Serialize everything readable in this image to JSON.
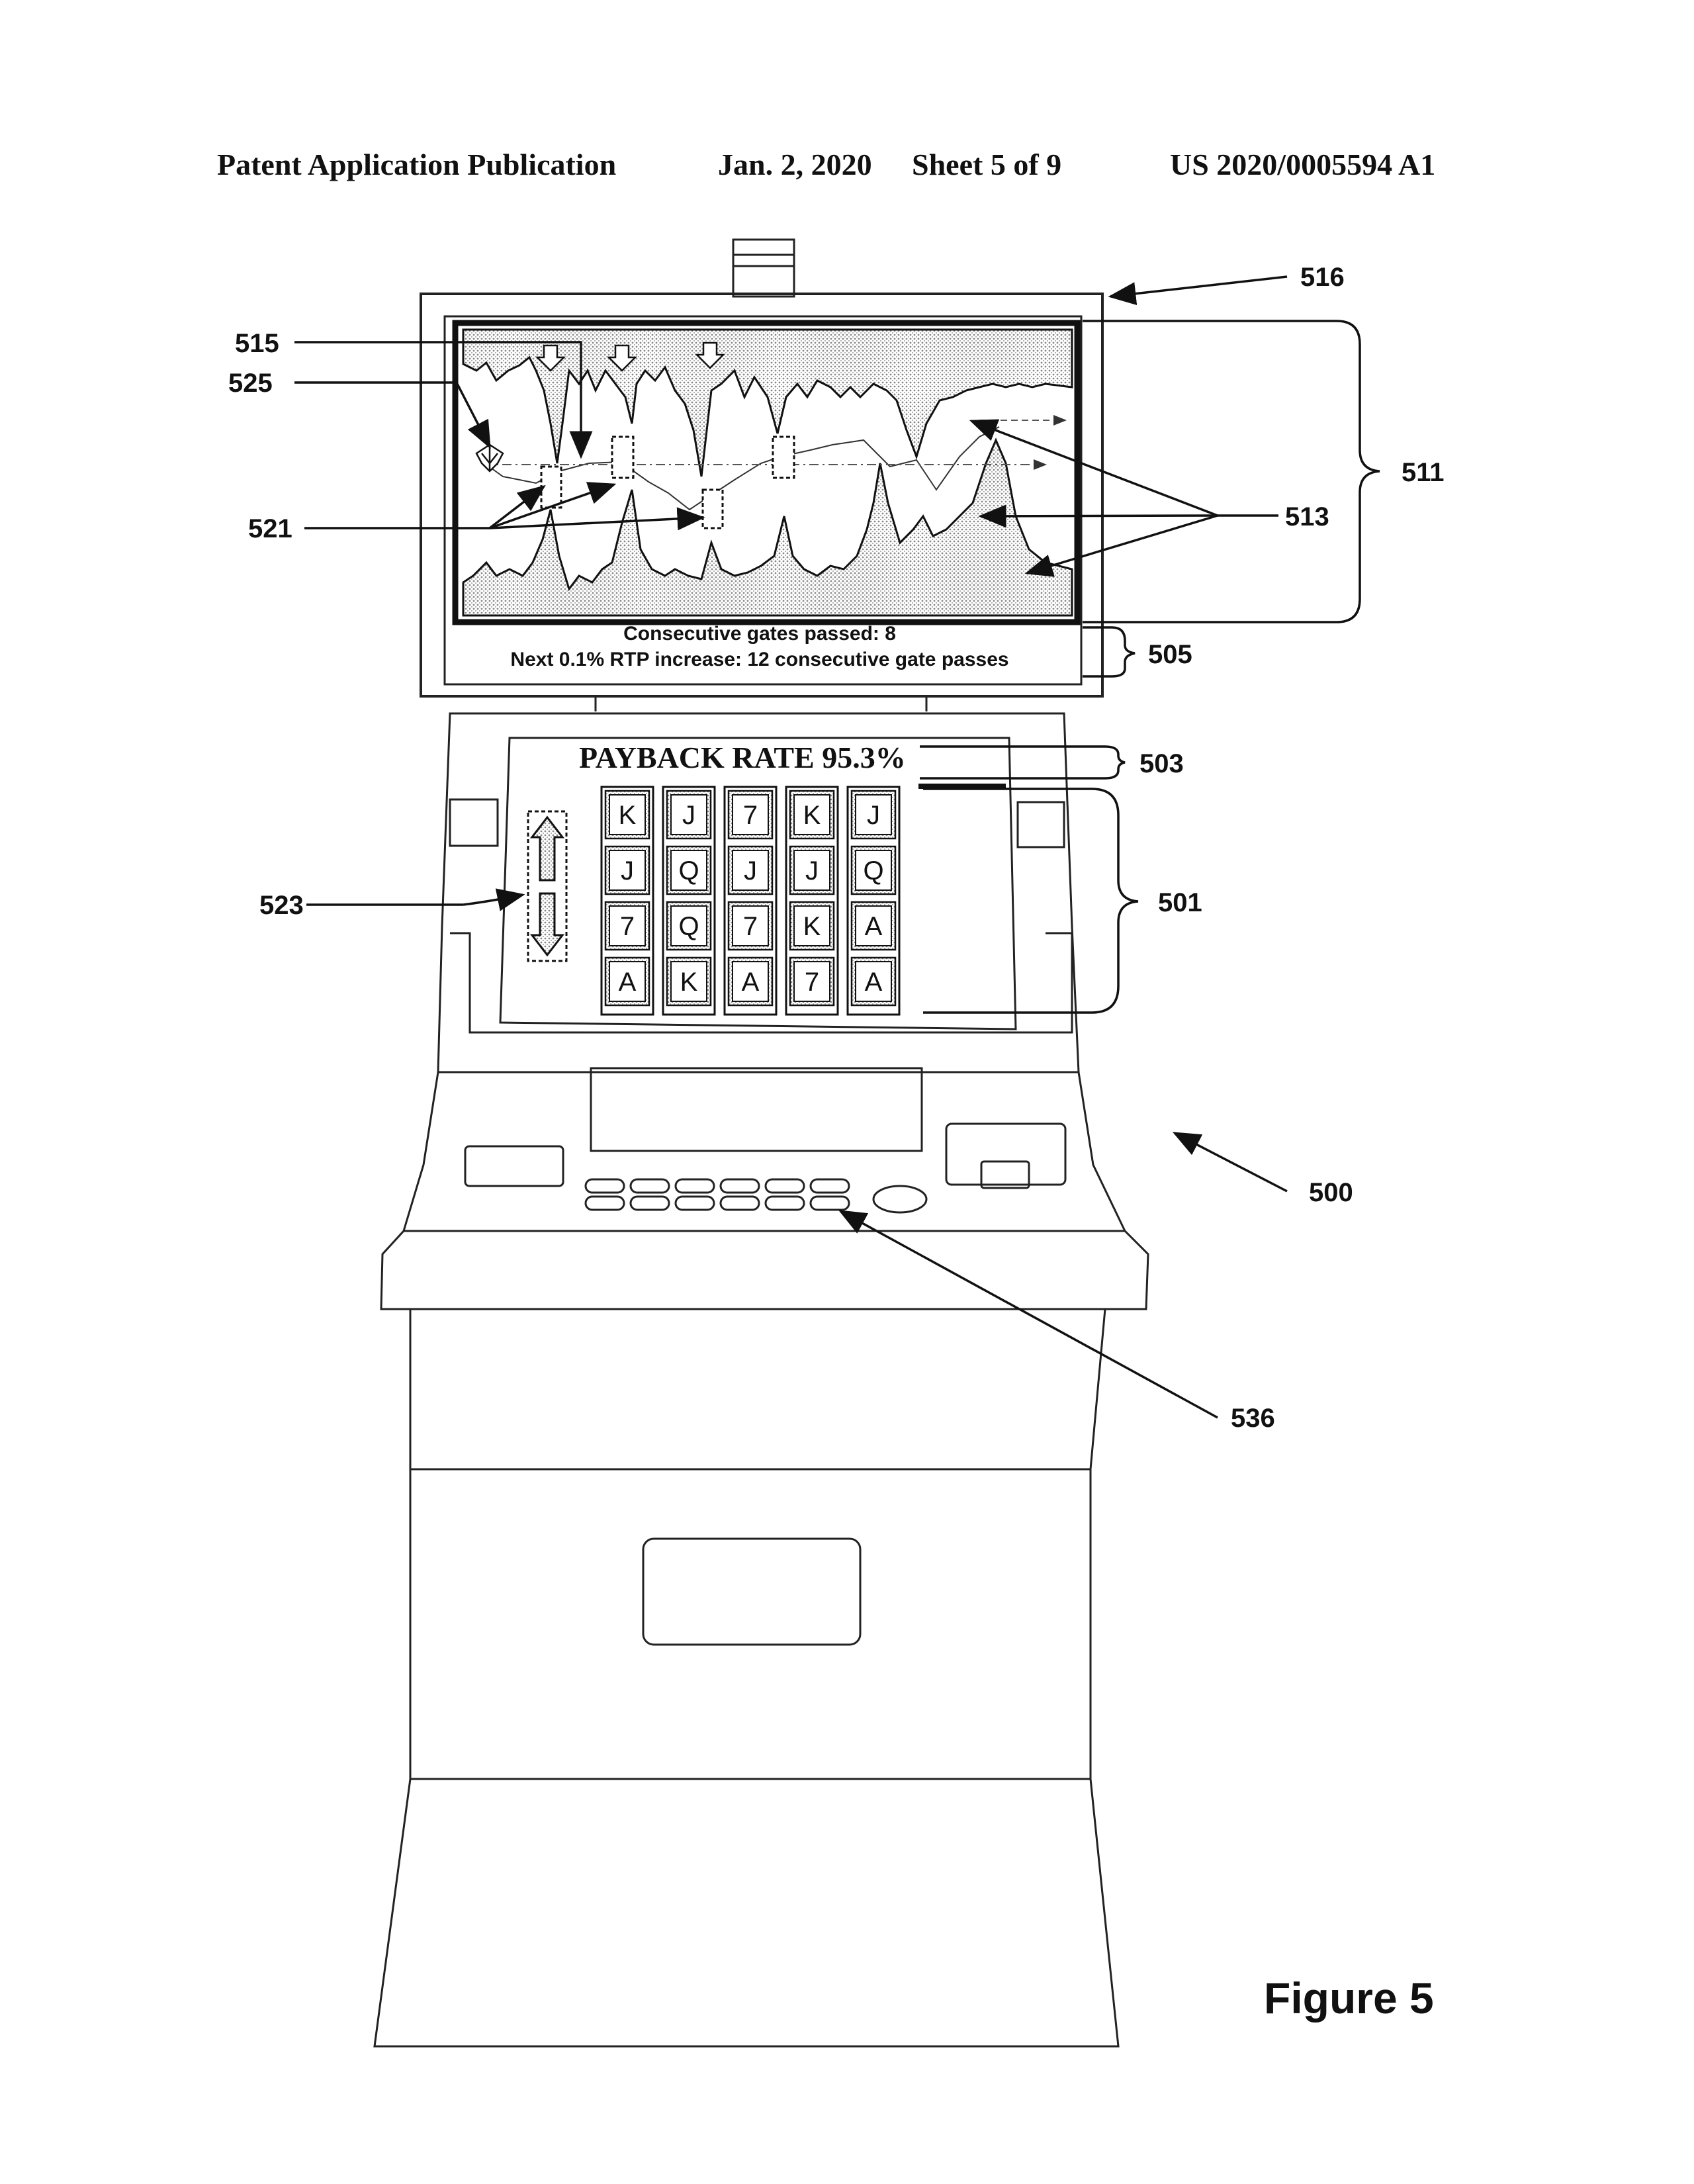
{
  "header": {
    "publication": "Patent Application Publication",
    "date": "Jan. 2, 2020",
    "sheet": "Sheet 5 of 9",
    "number": "US 2020/0005594 A1"
  },
  "secondary_display": {
    "gates_passed_text": "Consecutive gates passed: 8",
    "next_increase_text": "Next 0.1% RTP increase: 12 consecutive gate passes"
  },
  "primary_display": {
    "payback_text": "PAYBACK RATE 95.3%",
    "reels": [
      [
        "K",
        "J",
        "7",
        "A"
      ],
      [
        "J",
        "Q",
        "Q",
        "K"
      ],
      [
        "7",
        "J",
        "7",
        "A"
      ],
      [
        "K",
        "J",
        "K",
        "7"
      ],
      [
        "J",
        "Q",
        "A",
        "A"
      ]
    ]
  },
  "refs": {
    "r516": "516",
    "r515": "515",
    "r525": "525",
    "r511": "511",
    "r521": "521",
    "r513": "513",
    "r505": "505",
    "r503": "503",
    "r523": "523",
    "r501": "501",
    "r500": "500",
    "r536": "536"
  },
  "figure_label": "Figure 5"
}
